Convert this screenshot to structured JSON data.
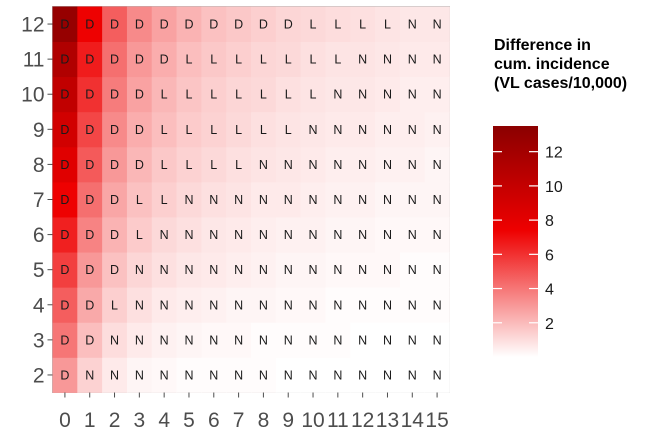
{
  "chart_data": {
    "type": "heatmap",
    "x": [
      0,
      1,
      2,
      3,
      4,
      5,
      6,
      7,
      8,
      9,
      10,
      11,
      12,
      13,
      14,
      15
    ],
    "y": [
      2,
      3,
      4,
      5,
      6,
      7,
      8,
      9,
      10,
      11,
      12
    ],
    "labels": [
      [
        "D",
        "N",
        "N",
        "N",
        "N",
        "N",
        "N",
        "N",
        "N",
        "N",
        "N",
        "N",
        "N",
        "N",
        "N",
        "N"
      ],
      [
        "D",
        "D",
        "N",
        "N",
        "N",
        "N",
        "N",
        "N",
        "N",
        "N",
        "N",
        "N",
        "N",
        "N",
        "N",
        "N"
      ],
      [
        "D",
        "D",
        "L",
        "N",
        "N",
        "N",
        "N",
        "N",
        "N",
        "N",
        "N",
        "N",
        "N",
        "N",
        "N",
        "N"
      ],
      [
        "D",
        "D",
        "D",
        "N",
        "N",
        "N",
        "N",
        "N",
        "N",
        "N",
        "N",
        "N",
        "N",
        "N",
        "N",
        "N"
      ],
      [
        "D",
        "D",
        "D",
        "L",
        "N",
        "N",
        "N",
        "N",
        "N",
        "N",
        "N",
        "N",
        "N",
        "N",
        "N",
        "N"
      ],
      [
        "D",
        "D",
        "D",
        "L",
        "L",
        "N",
        "N",
        "N",
        "N",
        "N",
        "N",
        "N",
        "N",
        "N",
        "N",
        "N"
      ],
      [
        "D",
        "D",
        "D",
        "D",
        "L",
        "L",
        "L",
        "L",
        "N",
        "N",
        "N",
        "N",
        "N",
        "N",
        "N",
        "N"
      ],
      [
        "D",
        "D",
        "D",
        "D",
        "L",
        "L",
        "L",
        "L",
        "L",
        "L",
        "N",
        "N",
        "N",
        "N",
        "N",
        "N"
      ],
      [
        "D",
        "D",
        "D",
        "D",
        "L",
        "L",
        "L",
        "L",
        "L",
        "L",
        "L",
        "N",
        "N",
        "N",
        "N",
        "N"
      ],
      [
        "D",
        "D",
        "D",
        "D",
        "D",
        "L",
        "L",
        "L",
        "L",
        "L",
        "L",
        "L",
        "N",
        "N",
        "N",
        "N"
      ],
      [
        "D",
        "D",
        "D",
        "D",
        "D",
        "D",
        "D",
        "D",
        "D",
        "D",
        "L",
        "L",
        "L",
        "L",
        "N",
        "N"
      ]
    ],
    "values": [
      [
        3.0,
        1.3,
        0.6,
        0.3,
        0.2,
        0.1,
        0.1,
        0.1,
        0.1,
        0,
        0,
        0,
        0,
        0,
        0,
        0
      ],
      [
        4.0,
        1.9,
        1.0,
        0.6,
        0.4,
        0.3,
        0.2,
        0.2,
        0.1,
        0.1,
        0.1,
        0.1,
        0,
        0,
        0,
        0
      ],
      [
        4.7,
        2.5,
        1.4,
        0.9,
        0.6,
        0.5,
        0.4,
        0.3,
        0.3,
        0.2,
        0.2,
        0.1,
        0.1,
        0.1,
        0.1,
        0.1
      ],
      [
        5.6,
        3.0,
        1.8,
        1.2,
        0.9,
        0.7,
        0.6,
        0.5,
        0.4,
        0.3,
        0.3,
        0.2,
        0.2,
        0.2,
        0.1,
        0.1
      ],
      [
        6.5,
        3.6,
        2.2,
        1.5,
        1.1,
        0.9,
        0.7,
        0.6,
        0.5,
        0.4,
        0.4,
        0.3,
        0.3,
        0.2,
        0.2,
        0.2
      ],
      [
        7.4,
        4.2,
        2.6,
        1.8,
        1.4,
        1.1,
        0.9,
        0.8,
        0.6,
        0.6,
        0.5,
        0.4,
        0.4,
        0.3,
        0.3,
        0.3
      ],
      [
        8.3,
        4.8,
        3.0,
        2.1,
        1.6,
        1.3,
        1.1,
        0.9,
        0.8,
        0.7,
        0.6,
        0.5,
        0.5,
        0.4,
        0.4,
        0.3
      ],
      [
        9.2,
        5.4,
        3.4,
        2.4,
        1.9,
        1.5,
        1.3,
        1.1,
        0.9,
        0.8,
        0.7,
        0.6,
        0.6,
        0.5,
        0.5,
        0.4
      ],
      [
        10.2,
        6.0,
        3.8,
        2.7,
        2.1,
        1.7,
        1.4,
        1.2,
        1.1,
        0.9,
        0.8,
        0.7,
        0.7,
        0.6,
        0.5,
        0.5
      ],
      [
        11.2,
        6.6,
        4.2,
        3.0,
        2.4,
        1.9,
        1.6,
        1.4,
        1.2,
        1.1,
        0.9,
        0.8,
        0.8,
        0.7,
        0.6,
        0.6
      ],
      [
        12.8,
        7.4,
        4.7,
        3.4,
        2.7,
        2.2,
        1.8,
        1.6,
        1.4,
        1.2,
        1.1,
        1.0,
        0.9,
        0.8,
        0.7,
        0.7
      ]
    ],
    "colorbar": {
      "title": [
        "Difference in",
        "cum. incidence",
        "(VL cases/10,000)"
      ],
      "ticks": [
        2,
        4,
        6,
        8,
        10,
        12
      ],
      "range": [
        0,
        13.5
      ],
      "colors": [
        "#ffffff",
        "#ee0000",
        "#8b0000"
      ]
    },
    "grid": false
  }
}
